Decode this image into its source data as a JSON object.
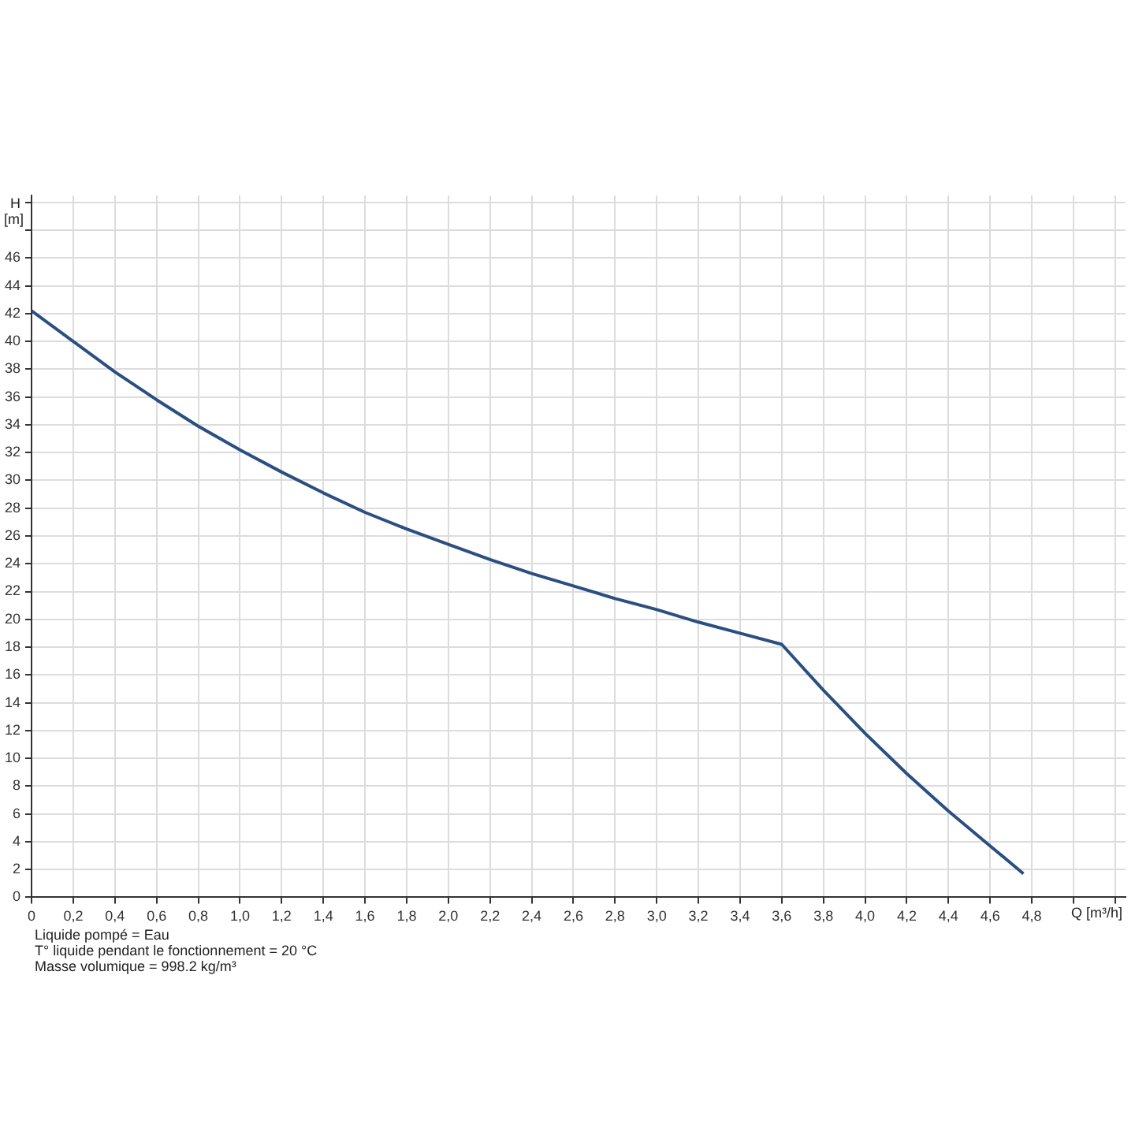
{
  "chart_data": {
    "type": "line",
    "xlabel": "Q [m³/h]",
    "ylabel": "H [m]",
    "annotations": [
      "Liquide pompé = Eau",
      "T° liquide pendant le fonctionnement = 20 °C",
      "Masse volumique = 998.2 kg/m³"
    ],
    "x": [
      0,
      0.2,
      0.4,
      0.6,
      0.8,
      1.0,
      1.2,
      1.4,
      1.6,
      1.8,
      2.0,
      2.2,
      2.4,
      2.6,
      2.8,
      3.0,
      3.2,
      3.4,
      3.6,
      3.8,
      4.0,
      4.2,
      4.4,
      4.6,
      4.76
    ],
    "series": [
      {
        "color": "#2b4f81",
        "values": [
          42.2,
          40,
          37.8,
          35.8,
          33.9,
          32.2,
          30.6,
          29.1,
          27.7,
          26.5,
          25.4,
          24.3,
          23.3,
          22.4,
          21.5,
          20.7,
          19.8,
          19.0,
          18.2,
          14.9,
          11.8,
          8.9,
          6.2,
          3.7,
          1.7
        ]
      }
    ],
    "xlim": [
      0,
      5.25
    ],
    "xticks": [
      0,
      {
        "value": 0.2,
        "label": "0,2"
      },
      {
        "value": 0.4,
        "label": "0,4"
      },
      {
        "value": 0.6,
        "label": "0,6"
      },
      {
        "value": 0.8,
        "label": "0,8"
      },
      {
        "value": 1.0,
        "label": "1,0"
      },
      {
        "value": 1.2,
        "label": "1,2"
      },
      {
        "value": 1.4,
        "label": "1,4"
      },
      {
        "value": 1.6,
        "label": "1,6"
      },
      {
        "value": 1.8,
        "label": "1,8"
      },
      {
        "value": 2.0,
        "label": "2,0"
      },
      {
        "value": 2.2,
        "label": "2,2"
      },
      {
        "value": 2.4,
        "label": "2,4"
      },
      {
        "value": 2.6,
        "label": "2,6"
      },
      {
        "value": 2.8,
        "label": "2,8"
      },
      {
        "value": 3.0,
        "label": "3,0"
      },
      {
        "value": 3.2,
        "label": "3,2"
      },
      {
        "value": 3.4,
        "label": "3,4"
      },
      {
        "value": 3.6,
        "label": "3,6"
      },
      {
        "value": 3.8,
        "label": "3,8"
      },
      {
        "value": 4.0,
        "label": "4,0"
      },
      {
        "value": 4.2,
        "label": "4,2"
      },
      {
        "value": 4.4,
        "label": "4,4"
      },
      {
        "value": 4.6,
        "label": "4,6"
      },
      {
        "value": 4.8,
        "label": "4,8"
      },
      {
        "value": 5.0,
        "label": null
      },
      {
        "value": 5.2,
        "label": null
      }
    ],
    "ylim": [
      0,
      50.5
    ],
    "yticks": [
      0,
      2,
      4,
      6,
      8,
      10,
      12,
      14,
      16,
      18,
      20,
      22,
      24,
      26,
      28,
      30,
      32,
      34,
      36,
      38,
      40,
      42,
      44,
      46,
      {
        "value": 48,
        "label": null
      },
      {
        "value": 50,
        "label": null
      }
    ],
    "grid": true,
    "legend": false,
    "marker": "none",
    "line_style": "solid"
  }
}
